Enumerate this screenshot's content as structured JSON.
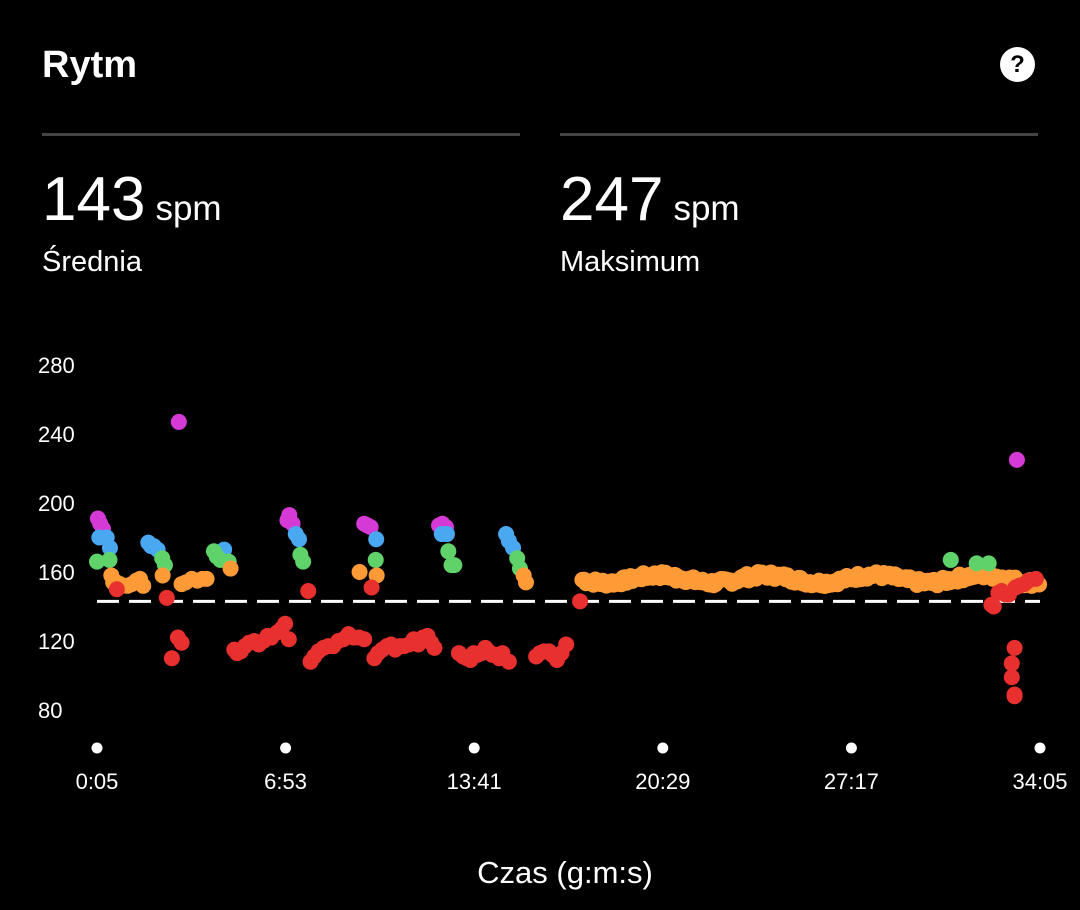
{
  "header": {
    "title": "Rytm",
    "help_icon": "?"
  },
  "stats": [
    {
      "value": "143",
      "unit": "spm",
      "label": "Średnia"
    },
    {
      "value": "247",
      "unit": "spm",
      "label": "Maksimum"
    }
  ],
  "chart_data": {
    "type": "scatter",
    "title": "Rytm",
    "xlabel": "Czas (g:m:s)",
    "ylabel": "",
    "x_unit": "seconds",
    "xlim": [
      5,
      2045
    ],
    "ylim": [
      65,
      290
    ],
    "y_ticks": [
      80,
      120,
      160,
      200,
      240,
      280
    ],
    "x_ticks": [
      {
        "value": 5,
        "label": "0:05"
      },
      {
        "value": 413,
        "label": "6:53"
      },
      {
        "value": 821,
        "label": "13:41"
      },
      {
        "value": 1229,
        "label": "20:29"
      },
      {
        "value": 1637,
        "label": "27:17"
      },
      {
        "value": 2045,
        "label": "34:05"
      }
    ],
    "average_line": 143,
    "colors": {
      "red": "#e8302e",
      "orange": "#ff9b36",
      "green": "#5fd36a",
      "blue": "#4aa8f0",
      "purple": "#d63ad6"
    },
    "series": [
      {
        "name": "purple",
        "points": [
          [
            7,
            191
          ],
          [
            12,
            188
          ],
          [
            18,
            185
          ],
          [
            182,
            247
          ],
          [
            417,
            190
          ],
          [
            421,
            193
          ],
          [
            428,
            188
          ],
          [
            583,
            188
          ],
          [
            590,
            187
          ],
          [
            597,
            186
          ],
          [
            745,
            187
          ],
          [
            752,
            188
          ],
          [
            760,
            186
          ],
          [
            1995,
            225
          ]
        ]
      },
      {
        "name": "blue",
        "points": [
          [
            10,
            180
          ],
          [
            26,
            180
          ],
          [
            33,
            174
          ],
          [
            116,
            177
          ],
          [
            122,
            175
          ],
          [
            128,
            175
          ],
          [
            136,
            173
          ],
          [
            280,
            173
          ],
          [
            435,
            182
          ],
          [
            442,
            179
          ],
          [
            609,
            179
          ],
          [
            751,
            182
          ],
          [
            762,
            182
          ],
          [
            890,
            182
          ],
          [
            896,
            178
          ],
          [
            905,
            174
          ]
        ]
      },
      {
        "name": "green",
        "points": [
          [
            5,
            166
          ],
          [
            32,
            167
          ],
          [
            146,
            168
          ],
          [
            152,
            164
          ],
          [
            258,
            172
          ],
          [
            264,
            169
          ],
          [
            272,
            167
          ],
          [
            290,
            166
          ],
          [
            445,
            170
          ],
          [
            451,
            166
          ],
          [
            608,
            167
          ],
          [
            765,
            172
          ],
          [
            772,
            164
          ],
          [
            778,
            164
          ],
          [
            914,
            168
          ],
          [
            920,
            162
          ],
          [
            1852,
            167
          ],
          [
            1908,
            165
          ],
          [
            1934,
            165
          ]
        ]
      },
      {
        "name": "orange",
        "points": [
          [
            36,
            158
          ],
          [
            40,
            154
          ],
          [
            47,
            154
          ],
          [
            55,
            153
          ],
          [
            60,
            152
          ],
          [
            71,
            152
          ],
          [
            80,
            153
          ],
          [
            90,
            155
          ],
          [
            98,
            156
          ],
          [
            105,
            152
          ],
          [
            147,
            158
          ],
          [
            188,
            153
          ],
          [
            197,
            154
          ],
          [
            210,
            156
          ],
          [
            222,
            155
          ],
          [
            233,
            156
          ],
          [
            242,
            156
          ],
          [
            294,
            162
          ],
          [
            573,
            160
          ],
          [
            610,
            158
          ],
          [
            928,
            158
          ],
          [
            933,
            154
          ],
          [
            1258,
            155
          ],
          [
            1998,
            154
          ]
        ]
      },
      {
        "name": "red",
        "points": [
          [
            48,
            150
          ],
          [
            156,
            145
          ],
          [
            167,
            110
          ],
          [
            180,
            122
          ],
          [
            188,
            119
          ],
          [
            302,
            115
          ],
          [
            308,
            113
          ],
          [
            316,
            114
          ],
          [
            325,
            117
          ],
          [
            334,
            119
          ],
          [
            345,
            120
          ],
          [
            355,
            118
          ],
          [
            365,
            120
          ],
          [
            374,
            123
          ],
          [
            382,
            122
          ],
          [
            395,
            125
          ],
          [
            404,
            127
          ],
          [
            412,
            130
          ],
          [
            420,
            121
          ],
          [
            462,
            149
          ],
          [
            467,
            108
          ],
          [
            475,
            111
          ],
          [
            484,
            114
          ],
          [
            495,
            116
          ],
          [
            505,
            117
          ],
          [
            516,
            117
          ],
          [
            527,
            120
          ],
          [
            538,
            121
          ],
          [
            549,
            124
          ],
          [
            560,
            122
          ],
          [
            572,
            122
          ],
          [
            583,
            121
          ],
          [
            599,
            151
          ],
          [
            605,
            110
          ],
          [
            613,
            113
          ],
          [
            622,
            115
          ],
          [
            632,
            117
          ],
          [
            641,
            118
          ],
          [
            650,
            115
          ],
          [
            660,
            117
          ],
          [
            669,
            117
          ],
          [
            680,
            118
          ],
          [
            690,
            121
          ],
          [
            700,
            118
          ],
          [
            710,
            122
          ],
          [
            720,
            123
          ],
          [
            728,
            119
          ],
          [
            735,
            116
          ],
          [
            788,
            113
          ],
          [
            797,
            111
          ],
          [
            805,
            110
          ],
          [
            813,
            109
          ],
          [
            820,
            113
          ],
          [
            828,
            112
          ],
          [
            837,
            113
          ],
          [
            845,
            116
          ],
          [
            852,
            114
          ],
          [
            860,
            112
          ],
          [
            868,
            112
          ],
          [
            875,
            110
          ],
          [
            882,
            113
          ],
          [
            896,
            108
          ],
          [
            955,
            111
          ],
          [
            963,
            113
          ],
          [
            972,
            114
          ],
          [
            983,
            114
          ],
          [
            990,
            112
          ],
          [
            1000,
            109
          ],
          [
            1010,
            113
          ],
          [
            1020,
            118
          ],
          [
            1050,
            143
          ],
          [
            1945,
            140
          ],
          [
            1940,
            141
          ],
          [
            1955,
            148
          ],
          [
            1962,
            149
          ],
          [
            1970,
            147
          ],
          [
            1978,
            147
          ],
          [
            1990,
            116
          ],
          [
            1992,
            151
          ],
          [
            2000,
            152
          ],
          [
            2011,
            153
          ],
          [
            2020,
            155
          ],
          [
            2036,
            156
          ],
          [
            1984,
            107
          ],
          [
            1984,
            99
          ],
          [
            1990,
            89
          ],
          [
            1990,
            88
          ]
        ]
      }
    ],
    "orange_band": {
      "x_start": 1055,
      "x_end": 2045,
      "mean": 156
    }
  },
  "footer": {
    "xlabel": "Czas (g:m:s)"
  }
}
